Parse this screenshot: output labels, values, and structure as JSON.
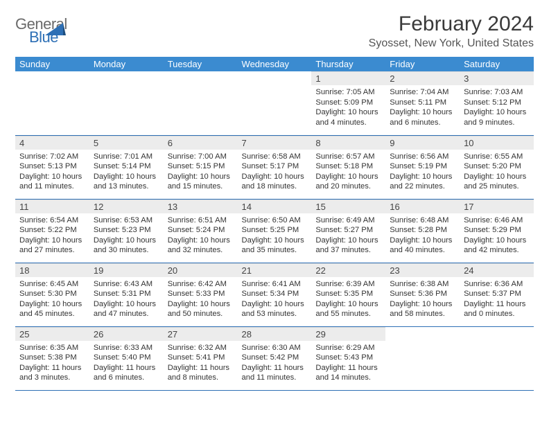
{
  "logo": {
    "general": "General",
    "blue": "Blue"
  },
  "title": "February 2024",
  "location": "Syosset, New York, United States",
  "colors": {
    "header_bg": "#3b8bd0",
    "header_text": "#ffffff",
    "daynum_bg": "#ececec",
    "row_border": "#2d6fb5",
    "logo_blue": "#2d6fb5",
    "logo_gray": "#6a6a6a"
  },
  "weekdays": [
    "Sunday",
    "Monday",
    "Tuesday",
    "Wednesday",
    "Thursday",
    "Friday",
    "Saturday"
  ],
  "weeks": [
    [
      {
        "empty": true
      },
      {
        "empty": true
      },
      {
        "empty": true
      },
      {
        "empty": true
      },
      {
        "day": "1",
        "l1": "Sunrise: 7:05 AM",
        "l2": "Sunset: 5:09 PM",
        "l3": "Daylight: 10 hours",
        "l4": "and 4 minutes."
      },
      {
        "day": "2",
        "l1": "Sunrise: 7:04 AM",
        "l2": "Sunset: 5:11 PM",
        "l3": "Daylight: 10 hours",
        "l4": "and 6 minutes."
      },
      {
        "day": "3",
        "l1": "Sunrise: 7:03 AM",
        "l2": "Sunset: 5:12 PM",
        "l3": "Daylight: 10 hours",
        "l4": "and 9 minutes."
      }
    ],
    [
      {
        "day": "4",
        "l1": "Sunrise: 7:02 AM",
        "l2": "Sunset: 5:13 PM",
        "l3": "Daylight: 10 hours",
        "l4": "and 11 minutes."
      },
      {
        "day": "5",
        "l1": "Sunrise: 7:01 AM",
        "l2": "Sunset: 5:14 PM",
        "l3": "Daylight: 10 hours",
        "l4": "and 13 minutes."
      },
      {
        "day": "6",
        "l1": "Sunrise: 7:00 AM",
        "l2": "Sunset: 5:15 PM",
        "l3": "Daylight: 10 hours",
        "l4": "and 15 minutes."
      },
      {
        "day": "7",
        "l1": "Sunrise: 6:58 AM",
        "l2": "Sunset: 5:17 PM",
        "l3": "Daylight: 10 hours",
        "l4": "and 18 minutes."
      },
      {
        "day": "8",
        "l1": "Sunrise: 6:57 AM",
        "l2": "Sunset: 5:18 PM",
        "l3": "Daylight: 10 hours",
        "l4": "and 20 minutes."
      },
      {
        "day": "9",
        "l1": "Sunrise: 6:56 AM",
        "l2": "Sunset: 5:19 PM",
        "l3": "Daylight: 10 hours",
        "l4": "and 22 minutes."
      },
      {
        "day": "10",
        "l1": "Sunrise: 6:55 AM",
        "l2": "Sunset: 5:20 PM",
        "l3": "Daylight: 10 hours",
        "l4": "and 25 minutes."
      }
    ],
    [
      {
        "day": "11",
        "l1": "Sunrise: 6:54 AM",
        "l2": "Sunset: 5:22 PM",
        "l3": "Daylight: 10 hours",
        "l4": "and 27 minutes."
      },
      {
        "day": "12",
        "l1": "Sunrise: 6:53 AM",
        "l2": "Sunset: 5:23 PM",
        "l3": "Daylight: 10 hours",
        "l4": "and 30 minutes."
      },
      {
        "day": "13",
        "l1": "Sunrise: 6:51 AM",
        "l2": "Sunset: 5:24 PM",
        "l3": "Daylight: 10 hours",
        "l4": "and 32 minutes."
      },
      {
        "day": "14",
        "l1": "Sunrise: 6:50 AM",
        "l2": "Sunset: 5:25 PM",
        "l3": "Daylight: 10 hours",
        "l4": "and 35 minutes."
      },
      {
        "day": "15",
        "l1": "Sunrise: 6:49 AM",
        "l2": "Sunset: 5:27 PM",
        "l3": "Daylight: 10 hours",
        "l4": "and 37 minutes."
      },
      {
        "day": "16",
        "l1": "Sunrise: 6:48 AM",
        "l2": "Sunset: 5:28 PM",
        "l3": "Daylight: 10 hours",
        "l4": "and 40 minutes."
      },
      {
        "day": "17",
        "l1": "Sunrise: 6:46 AM",
        "l2": "Sunset: 5:29 PM",
        "l3": "Daylight: 10 hours",
        "l4": "and 42 minutes."
      }
    ],
    [
      {
        "day": "18",
        "l1": "Sunrise: 6:45 AM",
        "l2": "Sunset: 5:30 PM",
        "l3": "Daylight: 10 hours",
        "l4": "and 45 minutes."
      },
      {
        "day": "19",
        "l1": "Sunrise: 6:43 AM",
        "l2": "Sunset: 5:31 PM",
        "l3": "Daylight: 10 hours",
        "l4": "and 47 minutes."
      },
      {
        "day": "20",
        "l1": "Sunrise: 6:42 AM",
        "l2": "Sunset: 5:33 PM",
        "l3": "Daylight: 10 hours",
        "l4": "and 50 minutes."
      },
      {
        "day": "21",
        "l1": "Sunrise: 6:41 AM",
        "l2": "Sunset: 5:34 PM",
        "l3": "Daylight: 10 hours",
        "l4": "and 53 minutes."
      },
      {
        "day": "22",
        "l1": "Sunrise: 6:39 AM",
        "l2": "Sunset: 5:35 PM",
        "l3": "Daylight: 10 hours",
        "l4": "and 55 minutes."
      },
      {
        "day": "23",
        "l1": "Sunrise: 6:38 AM",
        "l2": "Sunset: 5:36 PM",
        "l3": "Daylight: 10 hours",
        "l4": "and 58 minutes."
      },
      {
        "day": "24",
        "l1": "Sunrise: 6:36 AM",
        "l2": "Sunset: 5:37 PM",
        "l3": "Daylight: 11 hours",
        "l4": "and 0 minutes."
      }
    ],
    [
      {
        "day": "25",
        "l1": "Sunrise: 6:35 AM",
        "l2": "Sunset: 5:38 PM",
        "l3": "Daylight: 11 hours",
        "l4": "and 3 minutes."
      },
      {
        "day": "26",
        "l1": "Sunrise: 6:33 AM",
        "l2": "Sunset: 5:40 PM",
        "l3": "Daylight: 11 hours",
        "l4": "and 6 minutes."
      },
      {
        "day": "27",
        "l1": "Sunrise: 6:32 AM",
        "l2": "Sunset: 5:41 PM",
        "l3": "Daylight: 11 hours",
        "l4": "and 8 minutes."
      },
      {
        "day": "28",
        "l1": "Sunrise: 6:30 AM",
        "l2": "Sunset: 5:42 PM",
        "l3": "Daylight: 11 hours",
        "l4": "and 11 minutes."
      },
      {
        "day": "29",
        "l1": "Sunrise: 6:29 AM",
        "l2": "Sunset: 5:43 PM",
        "l3": "Daylight: 11 hours",
        "l4": "and 14 minutes."
      },
      {
        "empty": true
      },
      {
        "empty": true
      }
    ]
  ]
}
